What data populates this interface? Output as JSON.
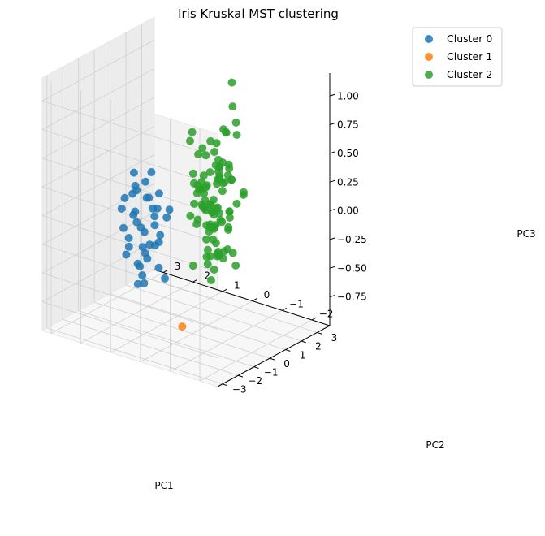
{
  "chart_data": {
    "type": "scatter",
    "projection": "3d",
    "title": "Iris Kruskal MST clustering",
    "xlabel": "PC1",
    "ylabel": "PC2",
    "zlabel": "PC3",
    "xlim": [
      -3.3,
      3.8
    ],
    "ylim": [
      -2.6,
      3.3
    ],
    "zlim": [
      -1.0,
      1.2
    ],
    "xticks": [
      "−3",
      "−2",
      "−1",
      "0",
      "1",
      "2",
      "3"
    ],
    "xtick_values": [
      -3,
      -2,
      -1,
      0,
      1,
      2,
      3
    ],
    "yticks": [
      "−2",
      "−1",
      "0",
      "1",
      "2",
      "3"
    ],
    "ytick_values": [
      -2,
      -1,
      0,
      1,
      2,
      3
    ],
    "zticks": [
      "−0.75",
      "−0.50",
      "−0.25",
      "0.00",
      "0.25",
      "0.50",
      "0.75",
      "1.00"
    ],
    "ztick_values": [
      -0.75,
      -0.5,
      -0.25,
      0,
      0.25,
      0.5,
      0.75,
      1.0
    ],
    "grid": true,
    "legend_position": "top-right",
    "series": [
      {
        "name": "Cluster 0",
        "color": "#1f77b4",
        "points": [
          [
            -2.7,
            0.3,
            0.1
          ],
          [
            -2.6,
            -0.2,
            0.3
          ],
          [
            -2.8,
            0.1,
            -0.1
          ],
          [
            -2.5,
            0.6,
            0.2
          ],
          [
            -2.7,
            -0.3,
            -0.2
          ],
          [
            -2.3,
            0.7,
            0.4
          ],
          [
            -2.9,
            -0.1,
            0.0
          ],
          [
            -2.6,
            0.2,
            0.5
          ],
          [
            -2.4,
            0.4,
            -0.1
          ],
          [
            -2.8,
            0.5,
            0.2
          ],
          [
            -2.2,
            0.1,
            0.1
          ],
          [
            -2.5,
            -0.4,
            -0.3
          ],
          [
            -2.6,
            0.9,
            0.3
          ],
          [
            -2.9,
            0.3,
            -0.2
          ],
          [
            -2.3,
            -0.1,
            0.4
          ],
          [
            -2.7,
            0.7,
            -0.1
          ],
          [
            -2.4,
            0.0,
            0.2
          ],
          [
            -2.1,
            0.5,
            0.0
          ],
          [
            -2.8,
            -0.4,
            0.1
          ],
          [
            -2.5,
            0.3,
            -0.4
          ],
          [
            -2.2,
            0.8,
            0.5
          ],
          [
            -2.6,
            0.0,
            0.6
          ],
          [
            -2.9,
            0.6,
            0.0
          ],
          [
            -2.3,
            0.3,
            -0.2
          ],
          [
            -2.7,
            -0.1,
            0.3
          ],
          [
            -2.4,
            0.6,
            0.1
          ],
          [
            -2.0,
            0.2,
            -0.1
          ],
          [
            -2.6,
            1.0,
            0.2
          ],
          [
            -2.5,
            -0.2,
            0.0
          ],
          [
            -2.8,
            0.2,
            -0.3
          ],
          [
            -2.2,
            -0.3,
            0.2
          ],
          [
            -2.6,
            0.5,
            0.4
          ],
          [
            -2.3,
            1.1,
            0.0
          ],
          [
            -2.7,
            0.4,
            -0.4
          ],
          [
            -2.4,
            -0.5,
            0.3
          ],
          [
            -2.1,
            0.9,
            0.3
          ],
          [
            -2.9,
            0.0,
            0.4
          ],
          [
            -2.0,
            0.4,
            0.3
          ],
          [
            -2.5,
            0.9,
            -0.2
          ],
          [
            -2.2,
            0.6,
            -0.3
          ]
        ]
      },
      {
        "name": "Cluster 1",
        "color": "#ff7f0e",
        "points": [
          [
            -3.1,
            -1.3,
            -0.6
          ]
        ]
      },
      {
        "name": "Cluster 2",
        "color": "#2ca02c",
        "points": [
          [
            1.3,
            0.7,
            0.6
          ],
          [
            0.9,
            0.3,
            0.2
          ],
          [
            1.5,
            0.6,
            0.4
          ],
          [
            0.2,
            -0.8,
            0.1
          ],
          [
            1.1,
            0.1,
            0.2
          ],
          [
            0.6,
            -0.4,
            -0.1
          ],
          [
            1.0,
            0.6,
            -0.1
          ],
          [
            -0.7,
            -1.0,
            -0.4
          ],
          [
            0.9,
            0.1,
            0.3
          ],
          [
            -0.2,
            -0.7,
            0.0
          ],
          [
            -0.5,
            -1.3,
            -0.2
          ],
          [
            0.3,
            0.1,
            0.1
          ],
          [
            0.2,
            -0.6,
            0.2
          ],
          [
            0.7,
            -0.1,
            -0.1
          ],
          [
            -0.3,
            -0.3,
            0.0
          ],
          [
            0.8,
            0.4,
            0.3
          ],
          [
            0.5,
            -0.2,
            -0.2
          ],
          [
            0.2,
            -0.3,
            0.1
          ],
          [
            0.8,
            -0.6,
            0.3
          ],
          [
            0.1,
            -0.6,
            0.1
          ],
          [
            0.9,
            0.0,
            -0.4
          ],
          [
            0.4,
            -0.1,
            0.1
          ],
          [
            1.1,
            -0.2,
            0.4
          ],
          [
            0.6,
            -0.3,
            0.1
          ],
          [
            0.7,
            0.1,
            0.2
          ],
          [
            0.9,
            0.3,
            -0.1
          ],
          [
            1.3,
            0.1,
            0.3
          ],
          [
            1.5,
            0.2,
            0.0
          ],
          [
            0.6,
            -0.2,
            -0.3
          ],
          [
            -0.4,
            -0.6,
            0.3
          ],
          [
            -0.1,
            -0.8,
            0.0
          ],
          [
            -0.2,
            -0.8,
            -0.1
          ],
          [
            0.1,
            -0.4,
            0.1
          ],
          [
            1.3,
            -0.3,
            -0.1
          ],
          [
            0.4,
            -0.3,
            -0.4
          ],
          [
            0.6,
            0.4,
            0.6
          ],
          [
            1.2,
            0.3,
            0.5
          ],
          [
            0.8,
            -0.3,
            0.0
          ],
          [
            0.1,
            0.0,
            0.3
          ],
          [
            0.0,
            -0.6,
            0.0
          ],
          [
            0.3,
            -0.4,
            -0.1
          ],
          [
            0.8,
            0.0,
            0.1
          ],
          [
            0.1,
            -0.4,
            0.3
          ],
          [
            -0.7,
            -1.1,
            -0.3
          ],
          [
            0.2,
            -0.5,
            -0.3
          ],
          [
            0.3,
            0.0,
            0.2
          ],
          [
            0.4,
            -0.1,
            0.3
          ],
          [
            0.6,
            0.1,
            0.2
          ],
          [
            -0.9,
            -0.5,
            -0.3
          ],
          [
            0.3,
            -0.2,
            0.1
          ],
          [
            2.5,
            0.0,
            1.0
          ],
          [
            1.4,
            -0.5,
            0.0
          ],
          [
            2.6,
            0.3,
            -0.5
          ],
          [
            1.9,
            -0.2,
            -0.2
          ],
          [
            2.3,
            0.0,
            0.3
          ],
          [
            3.4,
            0.6,
            -0.4
          ],
          [
            0.5,
            -1.2,
            0.9
          ],
          [
            2.9,
            0.4,
            0.5
          ],
          [
            2.3,
            -0.5,
            0.1
          ],
          [
            2.9,
            0.8,
            0.3
          ],
          [
            1.6,
            0.4,
            0.4
          ],
          [
            1.8,
            -0.3,
            -0.1
          ],
          [
            2.1,
            0.2,
            0.2
          ],
          [
            1.3,
            -0.8,
            0.7
          ],
          [
            1.6,
            -0.5,
            0.9
          ],
          [
            1.9,
            0.1,
            0.3
          ],
          [
            1.9,
            0.1,
            0.3
          ],
          [
            3.5,
            1.2,
            -0.3
          ],
          [
            3.8,
            0.3,
            -0.1
          ],
          [
            1.3,
            -0.8,
            0.1
          ],
          [
            2.4,
            0.4,
            0.2
          ],
          [
            1.2,
            -0.6,
            0.4
          ],
          [
            3.5,
            0.5,
            -0.6
          ],
          [
            1.4,
            -0.1,
            -0.4
          ],
          [
            2.3,
            0.4,
            0.1
          ],
          [
            2.6,
            0.6,
            -0.3
          ],
          [
            1.3,
            -0.2,
            -0.4
          ],
          [
            1.3,
            -0.1,
            -0.3
          ],
          [
            2.1,
            -0.2,
            0.2
          ],
          [
            2.4,
            0.4,
            -0.5
          ],
          [
            2.8,
            0.3,
            -0.5
          ],
          [
            3.2,
            1.4,
            -0.1
          ],
          [
            2.1,
            -0.2,
            0.2
          ],
          [
            1.4,
            -0.2,
            -0.1
          ],
          [
            1.8,
            -0.5,
            -0.5
          ],
          [
            3.1,
            0.8,
            -0.2
          ],
          [
            2.1,
            0.0,
            0.6
          ],
          [
            1.9,
            0.1,
            0.2
          ],
          [
            1.2,
            -0.2,
            -0.4
          ],
          [
            2.1,
            0.3,
            -0.1
          ],
          [
            2.3,
            0.2,
            0.3
          ],
          [
            1.9,
            0.4,
            0.5
          ],
          [
            1.4,
            -0.5,
            0.0
          ],
          [
            2.6,
            0.3,
            0.1
          ],
          [
            2.4,
            0.4,
            0.3
          ],
          [
            1.9,
            0.2,
            0.5
          ],
          [
            1.5,
            -0.4,
            0.3
          ],
          [
            1.8,
            0.1,
            0.2
          ],
          [
            1.9,
            0.0,
            0.1
          ],
          [
            1.4,
            -0.3,
            0.7
          ],
          [
            1.5,
            0.2,
            -0.2
          ]
        ]
      }
    ]
  }
}
